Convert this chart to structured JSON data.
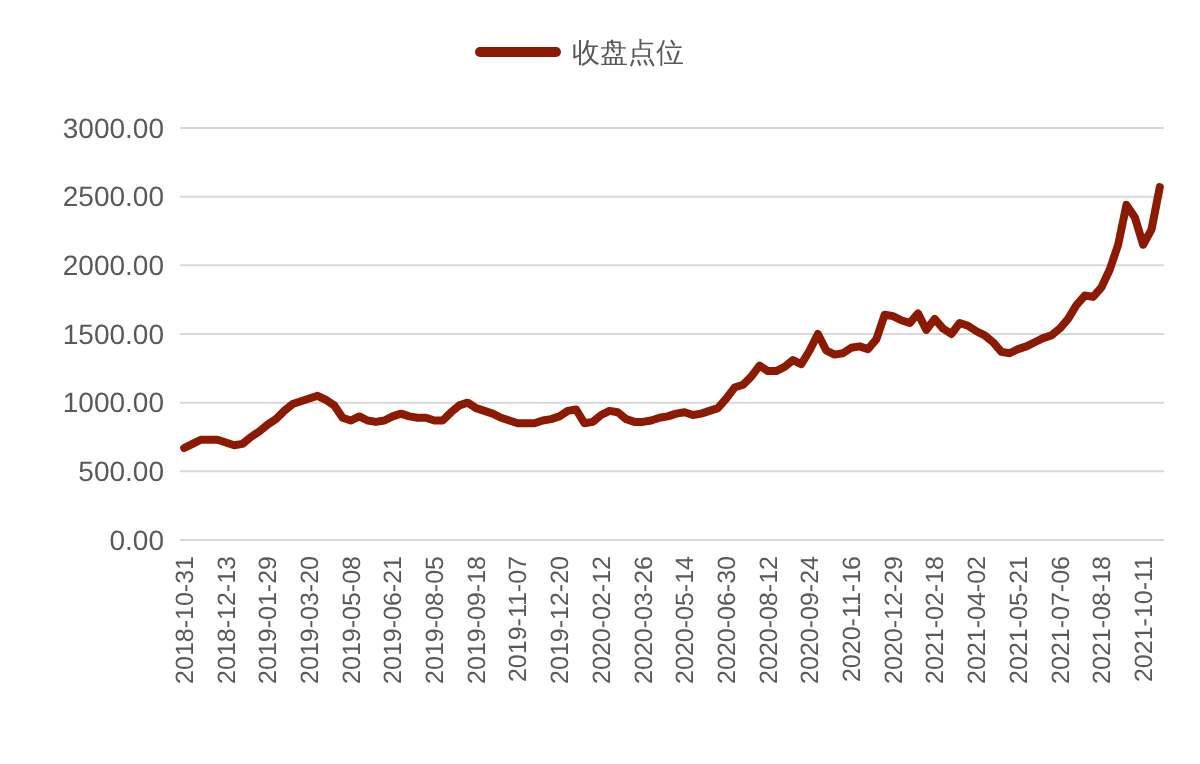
{
  "chart_data": {
    "type": "line",
    "categories": [
      "2018-10-31",
      null,
      null,
      null,
      null,
      "2018-12-13",
      null,
      null,
      null,
      null,
      "2019-01-29",
      null,
      null,
      null,
      null,
      "2019-03-20",
      null,
      null,
      null,
      null,
      "2019-05-08",
      null,
      null,
      null,
      null,
      "2019-06-21",
      null,
      null,
      null,
      null,
      "2019-08-05",
      null,
      null,
      null,
      null,
      "2019-09-18",
      null,
      null,
      null,
      null,
      "2019-11-07",
      null,
      null,
      null,
      null,
      "2019-12-20",
      null,
      null,
      null,
      null,
      "2020-02-12",
      null,
      null,
      null,
      null,
      "2020-03-26",
      null,
      null,
      null,
      null,
      "2020-05-14",
      null,
      null,
      null,
      null,
      "2020-06-30",
      null,
      null,
      null,
      null,
      "2020-08-12",
      null,
      null,
      null,
      null,
      "2020-09-24",
      null,
      null,
      null,
      null,
      "2020-11-16",
      null,
      null,
      null,
      null,
      "2020-12-29",
      null,
      null,
      null,
      null,
      "2021-02-18",
      null,
      null,
      null,
      null,
      "2021-04-02",
      null,
      null,
      null,
      null,
      "2021-05-21",
      null,
      null,
      null,
      null,
      "2021-07-06",
      null,
      null,
      null,
      null,
      "2021-08-18",
      null,
      null,
      null,
      null,
      "2021-10-11",
      null,
      null
    ],
    "series": [
      {
        "name": "收盘点位",
        "color": "#8b1a00",
        "values": [
          670,
          700,
          730,
          730,
          730,
          710,
          690,
          700,
          750,
          790,
          840,
          880,
          940,
          990,
          1010,
          1030,
          1050,
          1020,
          980,
          890,
          870,
          900,
          870,
          860,
          870,
          900,
          920,
          900,
          890,
          890,
          870,
          870,
          930,
          980,
          1000,
          960,
          940,
          920,
          890,
          870,
          850,
          850,
          850,
          870,
          880,
          900,
          940,
          950,
          850,
          860,
          910,
          940,
          930,
          880,
          860,
          860,
          870,
          890,
          900,
          920,
          930,
          910,
          920,
          940,
          960,
          1030,
          1110,
          1130,
          1190,
          1270,
          1230,
          1230,
          1260,
          1310,
          1280,
          1380,
          1500,
          1380,
          1350,
          1360,
          1400,
          1410,
          1390,
          1460,
          1640,
          1630,
          1600,
          1580,
          1650,
          1530,
          1610,
          1540,
          1500,
          1580,
          1560,
          1520,
          1490,
          1440,
          1370,
          1360,
          1390,
          1410,
          1440,
          1470,
          1490,
          1540,
          1610,
          1710,
          1780,
          1770,
          1840,
          1970,
          2150,
          2440,
          2350,
          2150,
          2260,
          2570
        ]
      }
    ],
    "ylim": [
      0,
      3000
    ],
    "yticks": [
      {
        "value": 0,
        "label": "0.00"
      },
      {
        "value": 500,
        "label": "500.00"
      },
      {
        "value": 1000,
        "label": "1000.00"
      },
      {
        "value": 1500,
        "label": "1500.00"
      },
      {
        "value": 2000,
        "label": "2000.00"
      },
      {
        "value": 2500,
        "label": "2500.00"
      },
      {
        "value": 3000,
        "label": "3000.00"
      }
    ],
    "grid": "y",
    "legend": "top",
    "line_style": "solid",
    "marker": "none"
  }
}
